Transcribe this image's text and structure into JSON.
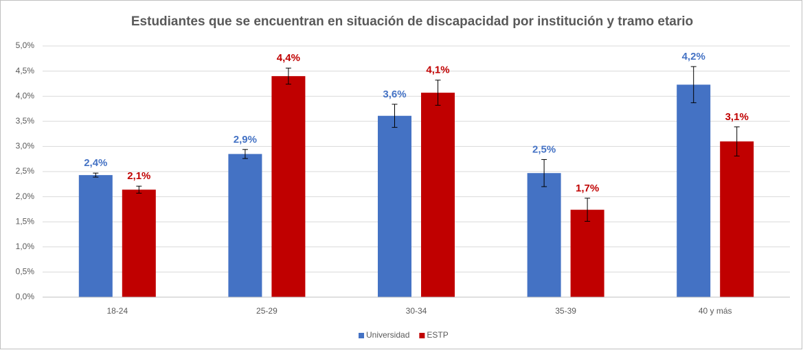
{
  "chart_data": {
    "type": "bar",
    "title": "Estudiantes que se encuentran en situación de discapacidad por institución y tramo etario",
    "categories": [
      "18-24",
      "25-29",
      "30-34",
      "35-39",
      "40 y más"
    ],
    "series": [
      {
        "name": "Universidad",
        "color": "#4472c4",
        "values": [
          2.43,
          2.85,
          3.61,
          2.47,
          4.23
        ],
        "errors": [
          0.04,
          0.09,
          0.23,
          0.27,
          0.36
        ],
        "value_labels": [
          "2,4%",
          "2,9%",
          "3,6%",
          "2,5%",
          "4,2%"
        ]
      },
      {
        "name": "ESTP",
        "color": "#c00000",
        "values": [
          2.14,
          4.4,
          4.07,
          1.74,
          3.1
        ],
        "errors": [
          0.07,
          0.16,
          0.25,
          0.23,
          0.29
        ],
        "value_labels": [
          "2,1%",
          "4,4%",
          "4,1%",
          "1,7%",
          "3,1%"
        ]
      }
    ],
    "ylim": [
      0,
      5
    ],
    "yticks": [
      {
        "value": 0,
        "label": "0,0%"
      },
      {
        "value": 0.5,
        "label": "0,5%"
      },
      {
        "value": 1,
        "label": "1,0%"
      },
      {
        "value": 1.5,
        "label": "1,5%"
      },
      {
        "value": 2,
        "label": "2,0%"
      },
      {
        "value": 2.5,
        "label": "2,5%"
      },
      {
        "value": 3,
        "label": "3,0%"
      },
      {
        "value": 3.5,
        "label": "3,5%"
      },
      {
        "value": 4,
        "label": "4,0%"
      },
      {
        "value": 4.5,
        "label": "4,5%"
      },
      {
        "value": 5,
        "label": "5,0%"
      }
    ],
    "grid": true,
    "legend": "bottom"
  }
}
